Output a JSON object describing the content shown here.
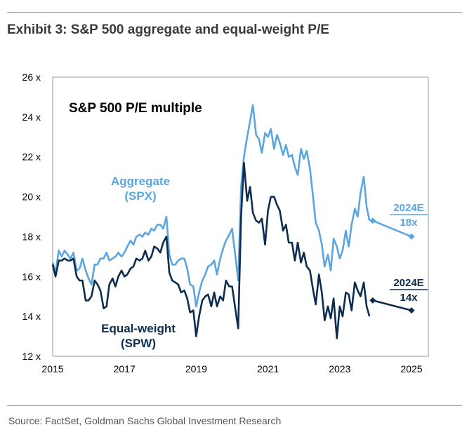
{
  "exhibit_title": "Exhibit 3: S&P 500 aggregate and equal-weight P/E",
  "source": "Source: FactSet, Goldman Sachs Global Investment Research",
  "colors": {
    "aggregate": "#5aa6de",
    "equal_weight": "#0d2d4f",
    "text": "#000000",
    "frame": "#9a9a9a"
  },
  "chart_data": {
    "type": "line",
    "title": "S&P 500 P/E multiple",
    "xlabel": "",
    "ylabel": "",
    "xlim": [
      2015,
      2025.9
    ],
    "ylim": [
      12,
      26
    ],
    "x_ticks": [
      2015,
      2017,
      2019,
      2021,
      2023,
      2025
    ],
    "x_tick_labels": [
      "2015",
      "2017",
      "2019",
      "2021",
      "2023",
      "2025"
    ],
    "y_ticks": [
      12,
      14,
      16,
      18,
      20,
      22,
      24,
      26
    ],
    "y_tick_labels": [
      "12 x",
      "14 x",
      "16 x",
      "18 x",
      "20 x",
      "22 x",
      "24 x",
      "26 x"
    ],
    "grid": false,
    "series": [
      {
        "name": "Aggregate (SPX)",
        "label_lines": [
          "Aggregate",
          "(SPX)"
        ],
        "color": "#5aa6de",
        "x": [
          2015.0,
          2015.08,
          2015.17,
          2015.25,
          2015.33,
          2015.42,
          2015.5,
          2015.58,
          2015.67,
          2015.75,
          2015.83,
          2015.92,
          2016.0,
          2016.08,
          2016.17,
          2016.25,
          2016.33,
          2016.42,
          2016.5,
          2016.58,
          2016.67,
          2016.75,
          2016.83,
          2016.92,
          2017.0,
          2017.08,
          2017.17,
          2017.25,
          2017.33,
          2017.42,
          2017.5,
          2017.58,
          2017.67,
          2017.75,
          2017.83,
          2017.92,
          2018.0,
          2018.08,
          2018.17,
          2018.25,
          2018.33,
          2018.42,
          2018.5,
          2018.58,
          2018.67,
          2018.75,
          2018.83,
          2018.92,
          2019.0,
          2019.08,
          2019.17,
          2019.25,
          2019.33,
          2019.42,
          2019.5,
          2019.58,
          2019.67,
          2019.75,
          2019.83,
          2019.92,
          2020.0,
          2020.08,
          2020.17,
          2020.25,
          2020.33,
          2020.42,
          2020.5,
          2020.58,
          2020.67,
          2020.75,
          2020.83,
          2020.92,
          2021.0,
          2021.08,
          2021.17,
          2021.25,
          2021.33,
          2021.42,
          2021.5,
          2021.58,
          2021.67,
          2021.75,
          2021.83,
          2021.92,
          2022.0,
          2022.08,
          2022.17,
          2022.25,
          2022.33,
          2022.42,
          2022.5,
          2022.58,
          2022.67,
          2022.75,
          2022.83,
          2022.92,
          2023.0,
          2023.08,
          2023.17,
          2023.25,
          2023.33,
          2023.42,
          2023.5,
          2023.58,
          2023.67,
          2023.75,
          2023.83
        ],
        "y": [
          16.7,
          16.2,
          17.3,
          17.0,
          17.3,
          17.1,
          16.9,
          17.2,
          16.3,
          16.4,
          16.9,
          16.3,
          15.9,
          15.6,
          16.6,
          16.6,
          16.9,
          16.9,
          17.2,
          16.8,
          16.9,
          17.0,
          17.2,
          17.0,
          17.2,
          17.5,
          17.8,
          17.6,
          18.0,
          18.1,
          18.0,
          18.2,
          18.1,
          18.4,
          18.3,
          18.6,
          18.6,
          18.4,
          19.0,
          17.1,
          16.6,
          16.6,
          16.8,
          16.9,
          16.9,
          16.4,
          15.6,
          15.5,
          14.5,
          15.2,
          15.8,
          16.1,
          16.5,
          16.6,
          16.8,
          16.1,
          16.9,
          17.4,
          17.8,
          18.1,
          18.4,
          17.2,
          15.8,
          20.5,
          22.0,
          23.0,
          23.8,
          24.6,
          23.1,
          22.9,
          22.2,
          23.2,
          23.0,
          23.4,
          22.4,
          23.1,
          22.7,
          22.1,
          22.6,
          22.0,
          22.1,
          21.5,
          21.1,
          22.4,
          21.9,
          22.3,
          21.4,
          20.1,
          18.7,
          18.3,
          17.6,
          16.5,
          17.1,
          16.3,
          17.9,
          17.5,
          16.9,
          17.3,
          18.3,
          17.5,
          18.6,
          19.4,
          19.0,
          20.2,
          21.0,
          19.5,
          18.8
        ],
        "forecast": {
          "x": [
            2023.92,
            2025.0
          ],
          "y": [
            18.8,
            18.0
          ],
          "label_lines": [
            "2024E",
            "18x"
          ]
        }
      },
      {
        "name": "Equal-weight (SPW)",
        "label_lines": [
          "Equal-weight",
          "(SPW)"
        ],
        "color": "#0d2d4f",
        "x": [
          2015.0,
          2015.08,
          2015.17,
          2015.25,
          2015.33,
          2015.42,
          2015.5,
          2015.58,
          2015.67,
          2015.75,
          2015.83,
          2015.92,
          2016.0,
          2016.08,
          2016.17,
          2016.25,
          2016.33,
          2016.42,
          2016.5,
          2016.58,
          2016.67,
          2016.75,
          2016.83,
          2016.92,
          2017.0,
          2017.08,
          2017.17,
          2017.25,
          2017.33,
          2017.42,
          2017.5,
          2017.58,
          2017.67,
          2017.75,
          2017.83,
          2017.92,
          2018.0,
          2018.08,
          2018.17,
          2018.25,
          2018.33,
          2018.42,
          2018.5,
          2018.58,
          2018.67,
          2018.75,
          2018.83,
          2018.92,
          2019.0,
          2019.08,
          2019.17,
          2019.25,
          2019.33,
          2019.42,
          2019.5,
          2019.58,
          2019.67,
          2019.75,
          2019.83,
          2019.92,
          2020.0,
          2020.08,
          2020.17,
          2020.25,
          2020.33,
          2020.42,
          2020.5,
          2020.58,
          2020.67,
          2020.75,
          2020.83,
          2020.92,
          2021.0,
          2021.08,
          2021.17,
          2021.25,
          2021.33,
          2021.42,
          2021.5,
          2021.58,
          2021.67,
          2021.75,
          2021.83,
          2021.92,
          2022.0,
          2022.08,
          2022.17,
          2022.25,
          2022.33,
          2022.42,
          2022.5,
          2022.58,
          2022.67,
          2022.75,
          2022.83,
          2022.92,
          2023.0,
          2023.08,
          2023.17,
          2023.25,
          2023.33,
          2023.42,
          2023.5,
          2023.58,
          2023.67,
          2023.75,
          2023.83
        ],
        "y": [
          16.6,
          16.0,
          16.8,
          16.8,
          16.9,
          16.8,
          16.8,
          16.9,
          16.0,
          15.8,
          15.8,
          14.8,
          14.8,
          15.0,
          15.8,
          15.6,
          15.3,
          14.4,
          14.5,
          15.6,
          15.9,
          15.5,
          16.0,
          16.3,
          16.0,
          16.1,
          16.4,
          16.5,
          16.9,
          16.8,
          16.9,
          17.3,
          16.8,
          17.0,
          17.5,
          17.4,
          17.2,
          17.7,
          18.0,
          16.2,
          15.8,
          15.7,
          15.6,
          15.2,
          15.3,
          14.9,
          14.2,
          14.3,
          13.0,
          14.0,
          14.8,
          15.0,
          15.1,
          14.5,
          15.2,
          14.5,
          15.0,
          14.8,
          15.8,
          15.5,
          15.5,
          14.5,
          13.4,
          19.0,
          21.7,
          19.8,
          20.5,
          19.2,
          18.8,
          18.7,
          18.9,
          17.6,
          19.3,
          20.0,
          20.0,
          19.6,
          19.3,
          18.3,
          18.6,
          17.7,
          17.7,
          16.8,
          17.7,
          16.7,
          17.2,
          16.5,
          16.3,
          15.4,
          14.6,
          16.1,
          15.2,
          13.8,
          14.5,
          13.9,
          14.9,
          12.9,
          14.5,
          14.0,
          15.2,
          15.1,
          14.3,
          15.7,
          15.3,
          15.0,
          15.7,
          14.5,
          14.0
        ],
        "forecast": {
          "x": [
            2023.92,
            2025.0
          ],
          "y": [
            14.8,
            14.3
          ],
          "label_lines": [
            "2024E",
            "14x"
          ]
        }
      }
    ]
  }
}
